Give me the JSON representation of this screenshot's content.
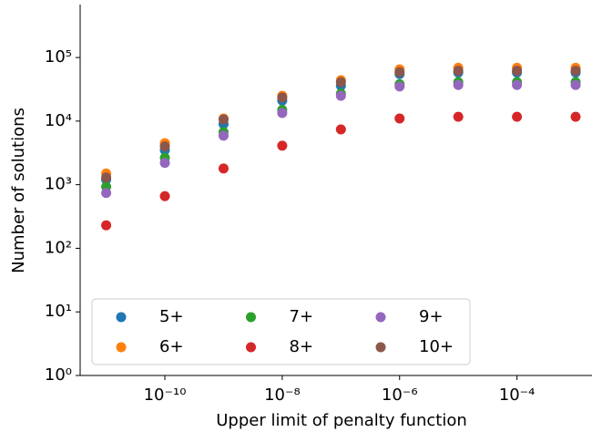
{
  "chart_data": {
    "type": "scatter",
    "x_label": "Upper limit of penalty function",
    "y_label": "Number of solutions",
    "x": [
      1e-11,
      1e-10,
      1e-09,
      1e-08,
      1e-07,
      1e-06,
      1e-05,
      0.0001,
      0.001
    ],
    "series": [
      {
        "name": "5+",
        "color": "#1f77b4",
        "values": [
          1200,
          3500,
          9000,
          21000,
          36000,
          55000,
          58000,
          58000,
          58000
        ]
      },
      {
        "name": "6+",
        "color": "#ff7f0e",
        "values": [
          1500,
          4500,
          11000,
          25000,
          44000,
          65000,
          69000,
          69000,
          69000
        ]
      },
      {
        "name": "7+",
        "color": "#2ca02c",
        "values": [
          930,
          2650,
          6700,
          15000,
          27000,
          38000,
          41000,
          41000,
          41000
        ]
      },
      {
        "name": "8+",
        "color": "#d62728",
        "values": [
          230,
          660,
          1800,
          4100,
          7400,
          11000,
          11700,
          11700,
          11700
        ]
      },
      {
        "name": "9+",
        "color": "#9467bd",
        "values": [
          740,
          2200,
          5900,
          13400,
          25000,
          35000,
          37000,
          37000,
          37000
        ]
      },
      {
        "name": "10+",
        "color": "#8c564b",
        "values": [
          1300,
          4000,
          10600,
          23500,
          41000,
          59000,
          62000,
          62000,
          62000
        ]
      }
    ],
    "xscale": "log",
    "yscale": "log",
    "xlim": [
      3.6e-12,
      0.0019
    ],
    "ylim": [
      1,
      680000
    ],
    "xticks": [
      {
        "value": 1e-10,
        "label": "10⁻¹⁰"
      },
      {
        "value": 1e-08,
        "label": "10⁻⁸"
      },
      {
        "value": 1e-06,
        "label": "10⁻⁶"
      },
      {
        "value": 0.0001,
        "label": "10⁻⁴"
      }
    ],
    "yticks": [
      {
        "value": 1,
        "label": "10⁰"
      },
      {
        "value": 10,
        "label": "10¹"
      },
      {
        "value": 100,
        "label": "10²"
      },
      {
        "value": 1000,
        "label": "10³"
      },
      {
        "value": 10000,
        "label": "10⁴"
      },
      {
        "value": 100000,
        "label": "10⁵"
      }
    ],
    "legend": "lower left",
    "legend_columns": 3
  }
}
